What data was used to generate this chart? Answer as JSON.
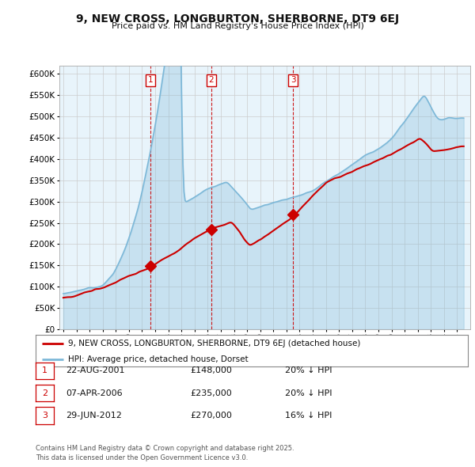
{
  "title": "9, NEW CROSS, LONGBURTON, SHERBORNE, DT9 6EJ",
  "subtitle": "Price paid vs. HM Land Registry's House Price Index (HPI)",
  "ytick_values": [
    0,
    50000,
    100000,
    150000,
    200000,
    250000,
    300000,
    350000,
    400000,
    450000,
    500000,
    550000,
    600000
  ],
  "hpi_color": "#7db8d8",
  "hpi_fill": "#daeaf5",
  "sale_color": "#cc0000",
  "dashed_color": "#cc0000",
  "sales": [
    {
      "date_num": 2001.64,
      "price": 148000,
      "label": "1"
    },
    {
      "date_num": 2006.27,
      "price": 235000,
      "label": "2"
    },
    {
      "date_num": 2012.49,
      "price": 270000,
      "label": "3"
    }
  ],
  "legend_house": "9, NEW CROSS, LONGBURTON, SHERBORNE, DT9 6EJ (detached house)",
  "legend_hpi": "HPI: Average price, detached house, Dorset",
  "table_rows": [
    {
      "num": "1",
      "date": "22-AUG-2001",
      "price": "£148,000",
      "change": "20% ↓ HPI"
    },
    {
      "num": "2",
      "date": "07-APR-2006",
      "price": "£235,000",
      "change": "20% ↓ HPI"
    },
    {
      "num": "3",
      "date": "29-JUN-2012",
      "price": "£270,000",
      "change": "16% ↓ HPI"
    }
  ],
  "footnote": "Contains HM Land Registry data © Crown copyright and database right 2025.\nThis data is licensed under the Open Government Licence v3.0.",
  "background_color": "#ffffff",
  "grid_color": "#cccccc"
}
